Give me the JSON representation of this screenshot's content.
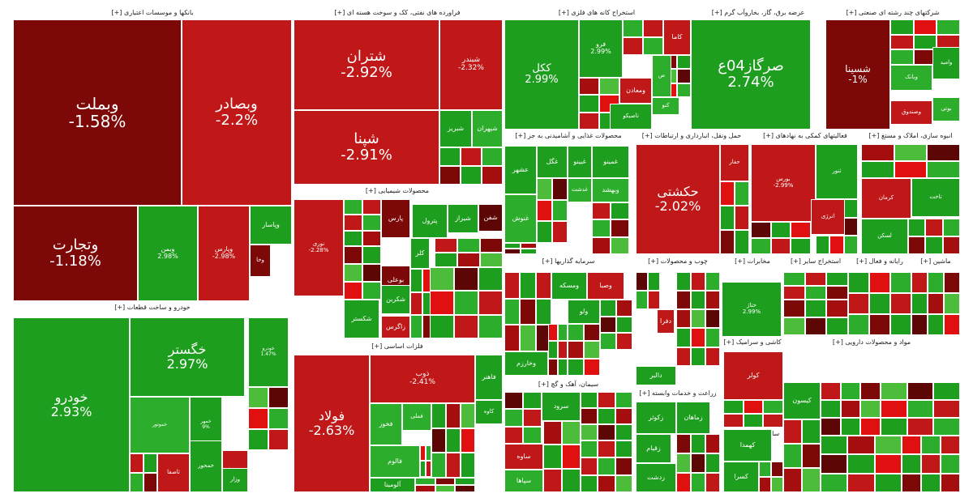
{
  "colors": {
    "g3": "#1e9e1e",
    "g2": "#2cad2c",
    "g1": "#4cbc3a",
    "r1": "#c01818",
    "r2": "#a50e0e",
    "r3": "#7d0808",
    "r4": "#5c0606",
    "bright": "#e01010"
  },
  "sectors": [
    {
      "id": "banks",
      "title": "بانکها و موسسات اعتباری [+]"
    },
    {
      "id": "refinery",
      "title": "فراورده های نفتی، کک و سوخت هسته ای [+]"
    },
    {
      "id": "mining",
      "title": "استخراج کانه های فلزی [+]"
    },
    {
      "id": "utilities",
      "title": "عرضه برق، گاز، بخاروآب گرم [+]"
    },
    {
      "id": "multi",
      "title": "شرکتهای چند رشته ای صنعتی [+]"
    },
    {
      "id": "food",
      "title": "محصولات غذایی و آشامیدنی به جز [+]"
    },
    {
      "id": "transport",
      "title": "حمل ونقل، انبارداری و ارتباطات [+]"
    },
    {
      "id": "auxfin",
      "title": "فعالیتهای کمکی به نهادهای [+]"
    },
    {
      "id": "build",
      "title": "انبوه سازی، املاک و مستغ [+]"
    },
    {
      "id": "chemical",
      "title": "محصولات شیمیایی [+]"
    },
    {
      "id": "investment",
      "title": "سرمایه گذاریها [+]"
    },
    {
      "id": "wood",
      "title": "چوب و محصولات [+]"
    },
    {
      "id": "telecom",
      "title": "مخابرات [+]"
    },
    {
      "id": "othermine",
      "title": "استخراج سایر [+]"
    },
    {
      "id": "radio",
      "title": "رایانه و فعال [+]"
    },
    {
      "id": "machine",
      "title": "ماشین [+]"
    },
    {
      "id": "auto",
      "title": "خودرو و ساخت قطعات [+]"
    },
    {
      "id": "metals",
      "title": "فلزات اساسی [+]"
    },
    {
      "id": "cement",
      "title": "سیمان، آهک و گچ [+]"
    },
    {
      "id": "agri",
      "title": "زراعت و خدمات وابسته [+]"
    },
    {
      "id": "ceramic",
      "title": "کاشی و سرامیک [+]"
    },
    {
      "id": "pharma",
      "title": "مواد و محصولات دارویی [+]"
    },
    {
      "id": "misc",
      "title": "سایر محصولات [+]"
    }
  ],
  "tiles": [
    {
      "name": "وبملت",
      "pct": "-1.58%",
      "c": "r3",
      "fs": 20
    },
    {
      "name": "وبصادر",
      "pct": "-2.2%",
      "c": "r1",
      "fs": 18
    },
    {
      "name": "وتجارت",
      "pct": "-1.18%",
      "c": "r3",
      "fs": 18
    },
    {
      "name": "وبمن",
      "pct": "2.98%",
      "c": "g3",
      "fs": 8
    },
    {
      "name": "وپارس",
      "pct": "-2.98%",
      "c": "r1",
      "fs": 8
    },
    {
      "name": "وپاسار",
      "pct": "",
      "c": "g3",
      "fs": 8
    },
    {
      "name": "وخا",
      "pct": "",
      "c": "r3",
      "fs": 7
    },
    {
      "name": "شتران",
      "pct": "-2.92%",
      "c": "r1",
      "fs": 18
    },
    {
      "name": "شپنا",
      "pct": "-2.91%",
      "c": "r1",
      "fs": 18
    },
    {
      "name": "شبندر",
      "pct": "-2.32%",
      "c": "r1",
      "fs": 9
    },
    {
      "name": "شبریز",
      "pct": "",
      "c": "g3",
      "fs": 8
    },
    {
      "name": "شپهران",
      "pct": "",
      "c": "g2",
      "fs": 8
    },
    {
      "name": "ککل",
      "pct": "2.99%",
      "c": "g3",
      "fs": 13
    },
    {
      "name": "فرو",
      "pct": "2.99%",
      "c": "g3",
      "fs": 8
    },
    {
      "name": "کاما",
      "pct": "",
      "c": "r1",
      "fs": 8
    },
    {
      "name": "ومعادن",
      "pct": "",
      "c": "r1",
      "fs": 8
    },
    {
      "name": "کنو",
      "pct": "",
      "c": "g2",
      "fs": 7
    },
    {
      "name": "تاصیکو",
      "pct": "",
      "c": "g3",
      "fs": 7
    },
    {
      "name": "ص",
      "pct": "",
      "c": "g2",
      "fs": 7
    },
    {
      "name": "صرگاز04ع",
      "pct": "2.74%",
      "c": "g3",
      "fs": 18
    },
    {
      "name": "شسینا",
      "pct": "-1%",
      "c": "r3",
      "fs": 12
    },
    {
      "name": "وبانک",
      "pct": "",
      "c": "g2",
      "fs": 7
    },
    {
      "name": "وامید",
      "pct": "",
      "c": "g3",
      "fs": 7
    },
    {
      "name": "وصندوق",
      "pct": "",
      "c": "r1",
      "fs": 7
    },
    {
      "name": "بوتی",
      "pct": "",
      "c": "g2",
      "fs": 7
    },
    {
      "name": "عشهر",
      "pct": "",
      "c": "g3",
      "fs": 8
    },
    {
      "name": "غگل",
      "pct": "",
      "c": "g3",
      "fs": 8
    },
    {
      "name": "غبینو",
      "pct": "",
      "c": "g3",
      "fs": 8
    },
    {
      "name": "غمینو",
      "pct": "",
      "c": "g3",
      "fs": 8
    },
    {
      "name": "غدشت",
      "pct": "",
      "c": "g2",
      "fs": 7
    },
    {
      "name": "غنوش",
      "pct": "",
      "c": "g2",
      "fs": 8
    },
    {
      "name": "وبهشد",
      "pct": "",
      "c": "g2",
      "fs": 8
    },
    {
      "name": "حکشتی",
      "pct": "-2.02%",
      "c": "r1",
      "fs": 16
    },
    {
      "name": "حفار",
      "pct": "",
      "c": "r1",
      "fs": 7
    },
    {
      "name": "بورس",
      "pct": "-2.99%",
      "c": "r1",
      "fs": 7
    },
    {
      "name": "ثنور",
      "pct": "",
      "c": "g3",
      "fs": 7
    },
    {
      "name": "انرژی",
      "pct": "",
      "c": "r1",
      "fs": 7
    },
    {
      "name": "کرمان",
      "pct": "",
      "c": "r1",
      "fs": 7
    },
    {
      "name": "تاخت",
      "pct": "",
      "c": "g3",
      "fs": 7
    },
    {
      "name": "لسکن",
      "pct": "",
      "c": "g3",
      "fs": 7
    },
    {
      "name": "نوری",
      "pct": "-2.28%",
      "c": "r1",
      "fs": 7
    },
    {
      "name": "پارس",
      "pct": "",
      "c": "r3",
      "fs": 8
    },
    {
      "name": "شیراز",
      "pct": "",
      "c": "g3",
      "fs": 8
    },
    {
      "name": "پترول",
      "pct": "",
      "c": "g3",
      "fs": 8
    },
    {
      "name": "شفن",
      "pct": "",
      "c": "r4",
      "fs": 8
    },
    {
      "name": "بوعلی",
      "pct": "",
      "c": "r3",
      "fs": 8
    },
    {
      "name": "شکربن",
      "pct": "",
      "c": "g3",
      "fs": 8
    },
    {
      "name": "شکستر",
      "pct": "",
      "c": "g3",
      "fs": 8
    },
    {
      "name": "کلر",
      "pct": "",
      "c": "g3",
      "fs": 8
    },
    {
      "name": "زاگرس",
      "pct": "",
      "c": "r1",
      "fs": 8
    },
    {
      "name": "ومسکه",
      "pct": "",
      "c": "g3",
      "fs": 8
    },
    {
      "name": "وصبا",
      "pct": "",
      "c": "r1",
      "fs": 8
    },
    {
      "name": "ولو",
      "pct": "",
      "c": "g3",
      "fs": 8
    },
    {
      "name": "وخارزم",
      "pct": "",
      "c": "g3",
      "fs": 8
    },
    {
      "name": "دالبر",
      "pct": "",
      "c": "g3",
      "fs": 8
    },
    {
      "name": "دفرا",
      "pct": "",
      "c": "r1",
      "fs": 8
    },
    {
      "name": "ختاژ",
      "pct": "2.99%",
      "c": "g3",
      "fs": 7
    },
    {
      "name": "فولاد",
      "pct": "-2.63%",
      "c": "r1",
      "fs": 16
    },
    {
      "name": "ذوب",
      "pct": "-2.41%",
      "c": "r1",
      "fs": 9
    },
    {
      "name": "فخوز",
      "pct": "",
      "c": "g2",
      "fs": 8
    },
    {
      "name": "فملی",
      "pct": "",
      "c": "g2",
      "fs": 7
    },
    {
      "name": "فالوم",
      "pct": "",
      "c": "g2",
      "fs": 8
    },
    {
      "name": "فاهنر",
      "pct": "",
      "c": "g3",
      "fs": 8
    },
    {
      "name": "کاوه",
      "pct": "",
      "c": "g3",
      "fs": 7
    },
    {
      "name": "آلومینا",
      "pct": "",
      "c": "g3",
      "fs": 8
    },
    {
      "name": "سرود",
      "pct": "",
      "c": "g3",
      "fs": 8
    },
    {
      "name": "ساوه",
      "pct": "",
      "c": "r1",
      "fs": 8
    },
    {
      "name": "سپاها",
      "pct": "",
      "c": "g2",
      "fs": 8
    },
    {
      "name": "زکوثر",
      "pct": "",
      "c": "g3",
      "fs": 8
    },
    {
      "name": "زماهان",
      "pct": "",
      "c": "g3",
      "fs": 8
    },
    {
      "name": "زقیام",
      "pct": "",
      "c": "g3",
      "fs": 8
    },
    {
      "name": "زدشت",
      "pct": "",
      "c": "g3",
      "fs": 8
    },
    {
      "name": "کولر",
      "pct": "",
      "c": "r1",
      "fs": 8
    },
    {
      "name": "کیسون",
      "pct": "",
      "c": "g3",
      "fs": 8
    },
    {
      "name": "کهمدا",
      "pct": "",
      "c": "g3",
      "fs": 8
    },
    {
      "name": "کسرا",
      "pct": "",
      "c": "g3",
      "fs": 8
    },
    {
      "name": "خگستر",
      "pct": "2.97%",
      "c": "g3",
      "fs": 16
    },
    {
      "name": "خودرو",
      "pct": "2.93%",
      "c": "g3",
      "fs": 16
    },
    {
      "name": "خودرو",
      "pct": "1.47%",
      "c": "g3",
      "fs": 6
    },
    {
      "name": "خموتور",
      "pct": "",
      "c": "g2",
      "fs": 6
    },
    {
      "name": "خمهر",
      "pct": "9%",
      "c": "g3",
      "fs": 6
    },
    {
      "name": "خمحور",
      "pct": "",
      "c": "g3",
      "fs": 7
    },
    {
      "name": "خنوفا",
      "pct": "",
      "c": "r1",
      "fs": 7
    },
    {
      "name": "وزار",
      "pct": "",
      "c": "g3",
      "fs": 7
    },
    {
      "name": "ثاصفا",
      "pct": "",
      "c": "r1",
      "fs": 7
    }
  ]
}
